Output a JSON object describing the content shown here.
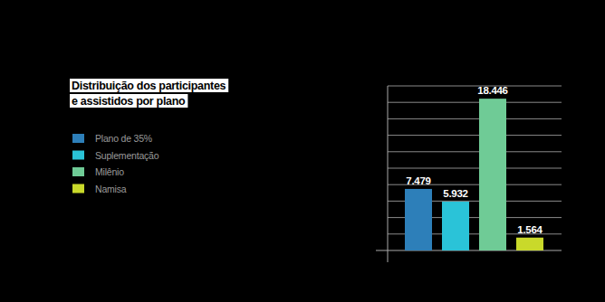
{
  "chart_data": {
    "type": "bar",
    "title": "Distribuição dos participantes\ne assistidos por plano",
    "categories": [
      "Plano de 35%",
      "Suplementação",
      "Milênio",
      "Namisa"
    ],
    "values": [
      7479,
      5932,
      18446,
      1564
    ],
    "value_labels": [
      "7.479",
      "5.932",
      "18.446",
      "1.564"
    ],
    "colors": [
      "#2d7fb9",
      "#2ac3d8",
      "#6fcb96",
      "#c9d92a"
    ],
    "ylim": [
      0,
      20000
    ],
    "yticks": [
      0,
      2000,
      4000,
      6000,
      8000,
      10000,
      12000,
      14000,
      16000,
      18000,
      20000
    ],
    "grid": true,
    "data_labels": true,
    "tick_labels": false,
    "legend": "left"
  }
}
